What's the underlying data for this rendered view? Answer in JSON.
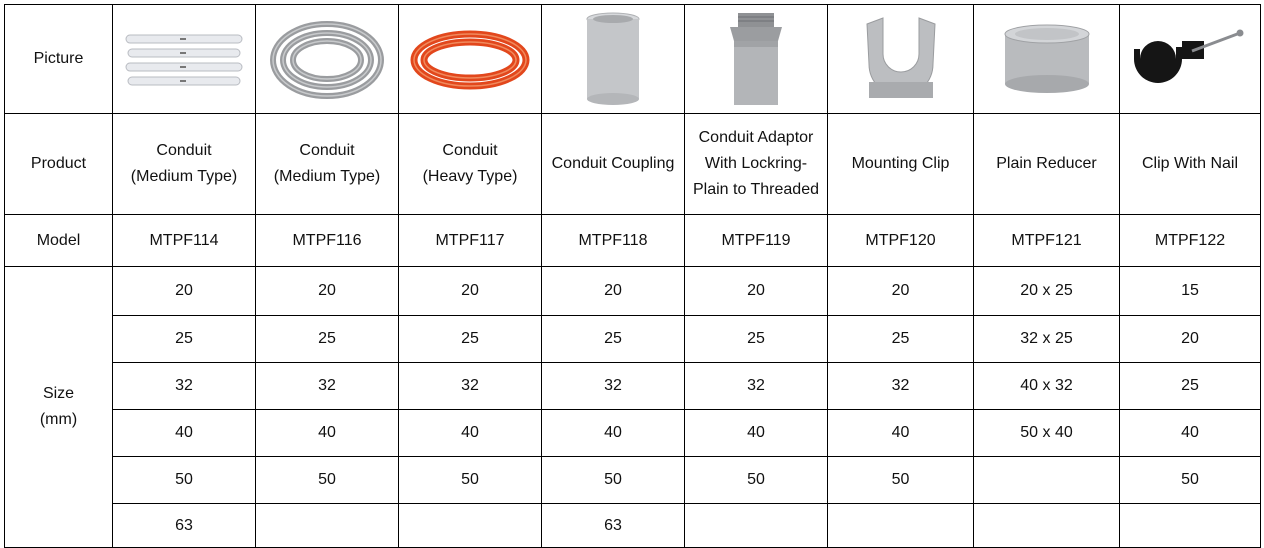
{
  "row_labels": {
    "picture": "Picture",
    "product": "Product",
    "model": "Model",
    "size_line1": "Size",
    "size_line2": "(mm)"
  },
  "products": [
    {
      "name_line1": "Conduit",
      "name_line2": "(Medium Type)",
      "name_line3": "",
      "model": "MTPF114",
      "picture_icon": "rigid-conduit-pipes-icon",
      "picture_color": "#e4e6ea",
      "sizes": [
        "20",
        "25",
        "32",
        "40",
        "50",
        "63"
      ]
    },
    {
      "name_line1": "Conduit",
      "name_line2": "(Medium Type)",
      "name_line3": "",
      "model": "MTPF116",
      "picture_icon": "flexible-conduit-coil-icon",
      "picture_color": "#9a9c9f",
      "sizes": [
        "20",
        "25",
        "32",
        "40",
        "50",
        ""
      ]
    },
    {
      "name_line1": "Conduit",
      "name_line2": "(Heavy Type)",
      "name_line3": "",
      "model": "MTPF117",
      "picture_icon": "orange-conduit-coil-icon",
      "picture_color": "#e2471c",
      "sizes": [
        "20",
        "25",
        "32",
        "40",
        "50",
        ""
      ]
    },
    {
      "name_line1": "Conduit Coupling",
      "name_line2": "",
      "name_line3": "",
      "model": "MTPF118",
      "picture_icon": "coupling-icon",
      "picture_color": "#c4c6c9",
      "sizes": [
        "20",
        "25",
        "32",
        "40",
        "50",
        "63"
      ]
    },
    {
      "name_line1": "Conduit Adaptor",
      "name_line2": "With Lockring-",
      "name_line3": "Plain to Threaded",
      "model": "MTPF119",
      "picture_icon": "adaptor-lockring-icon",
      "picture_color": "#a9abae",
      "sizes": [
        "20",
        "25",
        "32",
        "40",
        "50",
        ""
      ]
    },
    {
      "name_line1": "Mounting Clip",
      "name_line2": "",
      "name_line3": "",
      "model": "MTPF120",
      "picture_icon": "mounting-clip-icon",
      "picture_color": "#bcbec1",
      "sizes": [
        "20",
        "25",
        "32",
        "40",
        "50",
        ""
      ]
    },
    {
      "name_line1": "Plain Reducer",
      "name_line2": "",
      "name_line3": "",
      "model": "MTPF121",
      "picture_icon": "plain-reducer-icon",
      "picture_color": "#b9bbbe",
      "sizes": [
        "20 x 25",
        "32 x 25",
        "40 x 32",
        "50 x 40",
        "",
        ""
      ]
    },
    {
      "name_line1": "Clip With Nail",
      "name_line2": "",
      "name_line3": "",
      "model": "MTPF122",
      "picture_icon": "clip-with-nail-icon",
      "picture_color": "#151515",
      "sizes": [
        "15",
        "20",
        "25",
        "40",
        "50",
        ""
      ]
    }
  ]
}
